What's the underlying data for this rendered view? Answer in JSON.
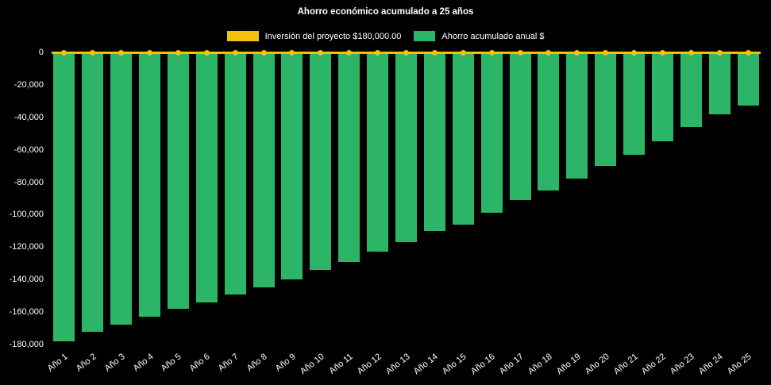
{
  "chart_data": {
    "type": "bar",
    "title": "Ahorro económico acumulado a 25 años",
    "categories": [
      "Año 1",
      "Año 2",
      "Año 3",
      "Año 4",
      "Año 5",
      "Año 6",
      "Año 7",
      "Año 8",
      "Año 9",
      "Año 10",
      "Año 11",
      "Año 12",
      "Año 13",
      "Año 14",
      "Año 15",
      "Año 16",
      "Año 17",
      "Año 18",
      "Año 19",
      "Año 20",
      "Año 21",
      "Año 22",
      "Año 23",
      "Año 24",
      "Año 25"
    ],
    "series": [
      {
        "name": "Inversión del proyecto $180,000.00",
        "type": "line",
        "color": "#f4c20d",
        "values": [
          0,
          0,
          0,
          0,
          0,
          0,
          0,
          0,
          0,
          0,
          0,
          0,
          0,
          0,
          0,
          0,
          0,
          0,
          0,
          0,
          0,
          0,
          0,
          0,
          0
        ]
      },
      {
        "name": "Ahorro acumulado anual $",
        "type": "bar",
        "color": "#2cb467",
        "values": [
          -178000,
          -172000,
          -168000,
          -163000,
          -158000,
          -154000,
          -149000,
          -145000,
          -140000,
          -134000,
          -129000,
          -123000,
          -117000,
          -110000,
          -106000,
          -99000,
          -91000,
          -85000,
          -78000,
          -70000,
          -63000,
          -55000,
          -46000,
          -38000,
          -33000
        ]
      }
    ],
    "ylim": [
      -180000,
      0
    ],
    "yticks": [
      0,
      -20000,
      -40000,
      -60000,
      -80000,
      -100000,
      -120000,
      -140000,
      -160000,
      -180000
    ],
    "ytick_labels": [
      "0",
      "-20,000",
      "-40,000",
      "-60,000",
      "-80,000",
      "-100,000",
      "-120,000",
      "-140,000",
      "-160,000",
      "-180,000"
    ],
    "grid": false,
    "legend_position": "top",
    "background": "#000000",
    "text_color": "#ffffff"
  }
}
